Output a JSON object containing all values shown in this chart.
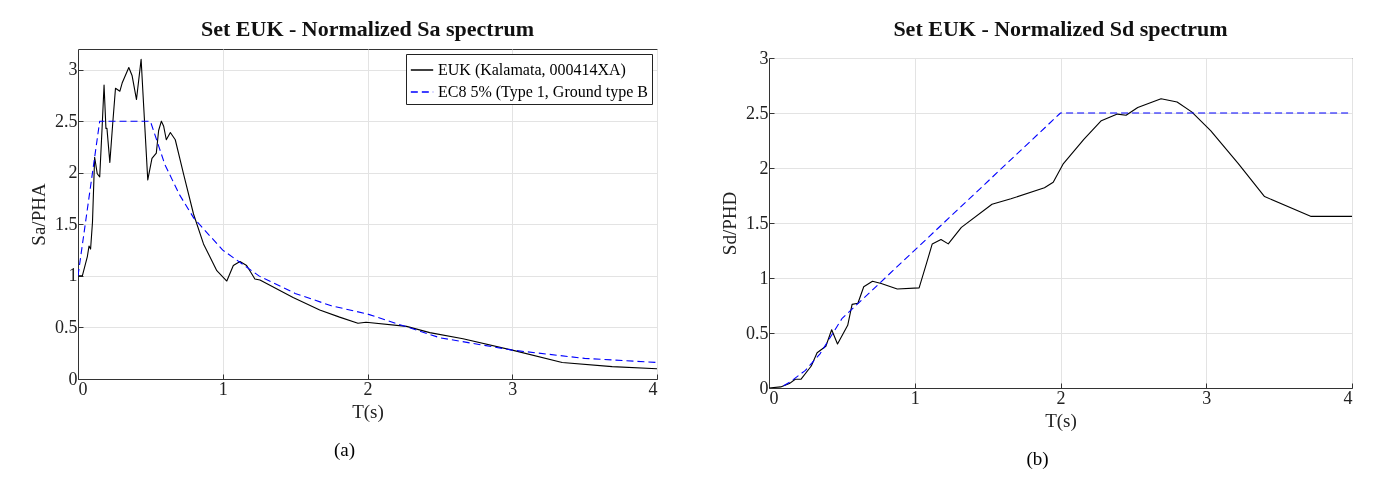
{
  "chart_data": [
    {
      "type": "line",
      "title": "Set EUK - Normalized Sa spectrum",
      "xlabel": "T(s)",
      "ylabel": "Sa/PHA",
      "xlim": [
        0,
        4
      ],
      "ylim": [
        0,
        3.2
      ],
      "xticks": [
        0,
        1,
        2,
        3,
        4
      ],
      "yticks": [
        0,
        0.5,
        1,
        1.5,
        2,
        2.5,
        3
      ],
      "grid": true,
      "legend": "top right",
      "annotations": [
        "(a)"
      ],
      "series": [
        {
          "name": "EUK (Kalamata, 000414XA)",
          "color": "#000000",
          "line_style": "solid",
          "x": [
            0,
            0.03,
            0.065,
            0.076,
            0.087,
            0.1,
            0.115,
            0.133,
            0.15,
            0.167,
            0.18,
            0.193,
            0.2,
            0.22,
            0.24,
            0.259,
            0.289,
            0.305,
            0.351,
            0.374,
            0.404,
            0.436,
            0.454,
            0.482,
            0.511,
            0.541,
            0.557,
            0.576,
            0.592,
            0.61,
            0.638,
            0.672,
            0.729,
            0.798,
            0.867,
            0.959,
            1.028,
            1.073,
            1.119,
            1.165,
            1.222,
            1.257,
            1.486,
            1.67,
            1.807,
            1.934,
            1.99,
            2.27,
            2.43,
            2.66,
            3.0,
            3.345,
            3.69,
            4.0
          ],
          "values": [
            1.0,
            1.0,
            1.19,
            1.29,
            1.26,
            1.52,
            2.15,
            1.99,
            1.96,
            2.45,
            2.85,
            2.43,
            2.43,
            2.1,
            2.48,
            2.82,
            2.79,
            2.87,
            3.02,
            2.94,
            2.71,
            3.1,
            2.64,
            1.93,
            2.14,
            2.19,
            2.41,
            2.5,
            2.45,
            2.32,
            2.39,
            2.32,
            1.99,
            1.6,
            1.31,
            1.05,
            0.95,
            1.1,
            1.14,
            1.1,
            0.97,
            0.96,
            0.79,
            0.67,
            0.6,
            0.54,
            0.55,
            0.51,
            0.45,
            0.39,
            0.28,
            0.16,
            0.12,
            0.1
          ]
        },
        {
          "name": "EC8 5% (Type 1, Ground type B",
          "color": "#0000ff",
          "line_style": "dashed",
          "x": [
            0,
            0.15,
            0.5,
            0.6,
            0.7,
            0.8,
            1,
            1.25,
            1.5,
            1.75,
            2,
            2.5,
            3,
            3.5,
            4
          ],
          "values": [
            1.0,
            2.5,
            2.5,
            2.08,
            1.79,
            1.56,
            1.25,
            1.0,
            0.83,
            0.71,
            0.63,
            0.4,
            0.28,
            0.2,
            0.16
          ]
        }
      ]
    },
    {
      "type": "line",
      "title": "Set EUK - Normalized Sd spectrum",
      "xlabel": "T(s)",
      "ylabel": "Sd/PHD",
      "xlim": [
        0,
        4
      ],
      "ylim": [
        0,
        3
      ],
      "xticks": [
        0,
        1,
        2,
        3,
        4
      ],
      "yticks": [
        0,
        0.5,
        1,
        1.5,
        2,
        2.5,
        3
      ],
      "grid": true,
      "annotations": [
        "(b)"
      ],
      "series": [
        {
          "color": "#000000",
          "line_style": "solid",
          "x": [
            0,
            0.08,
            0.14,
            0.18,
            0.22,
            0.29,
            0.33,
            0.39,
            0.43,
            0.47,
            0.54,
            0.57,
            0.61,
            0.65,
            0.71,
            0.77,
            0.88,
            1.03,
            1.08,
            1.12,
            1.18,
            1.23,
            1.32,
            1.53,
            1.66,
            1.89,
            1.95,
            2.02,
            2.16,
            2.28,
            2.39,
            2.45,
            2.53,
            2.69,
            2.8,
            2.9,
            3.03,
            3.22,
            3.4,
            3.72,
            4.0
          ],
          "values": [
            0,
            0.01,
            0.04,
            0.08,
            0.08,
            0.2,
            0.32,
            0.38,
            0.53,
            0.4,
            0.57,
            0.76,
            0.77,
            0.92,
            0.97,
            0.95,
            0.9,
            0.91,
            1.13,
            1.31,
            1.35,
            1.31,
            1.46,
            1.67,
            1.72,
            1.82,
            1.87,
            2.04,
            2.26,
            2.43,
            2.49,
            2.48,
            2.55,
            2.63,
            2.6,
            2.51,
            2.34,
            2.04,
            1.74,
            1.56,
            1.56
          ]
        },
        {
          "color": "#0000ff",
          "line_style": "dashed",
          "x": [
            0.1,
            0.15,
            0.25,
            0.35,
            0.5,
            2,
            4
          ],
          "values": [
            0.02,
            0.06,
            0.16,
            0.31,
            0.63,
            2.5,
            2.5
          ]
        }
      ]
    }
  ]
}
